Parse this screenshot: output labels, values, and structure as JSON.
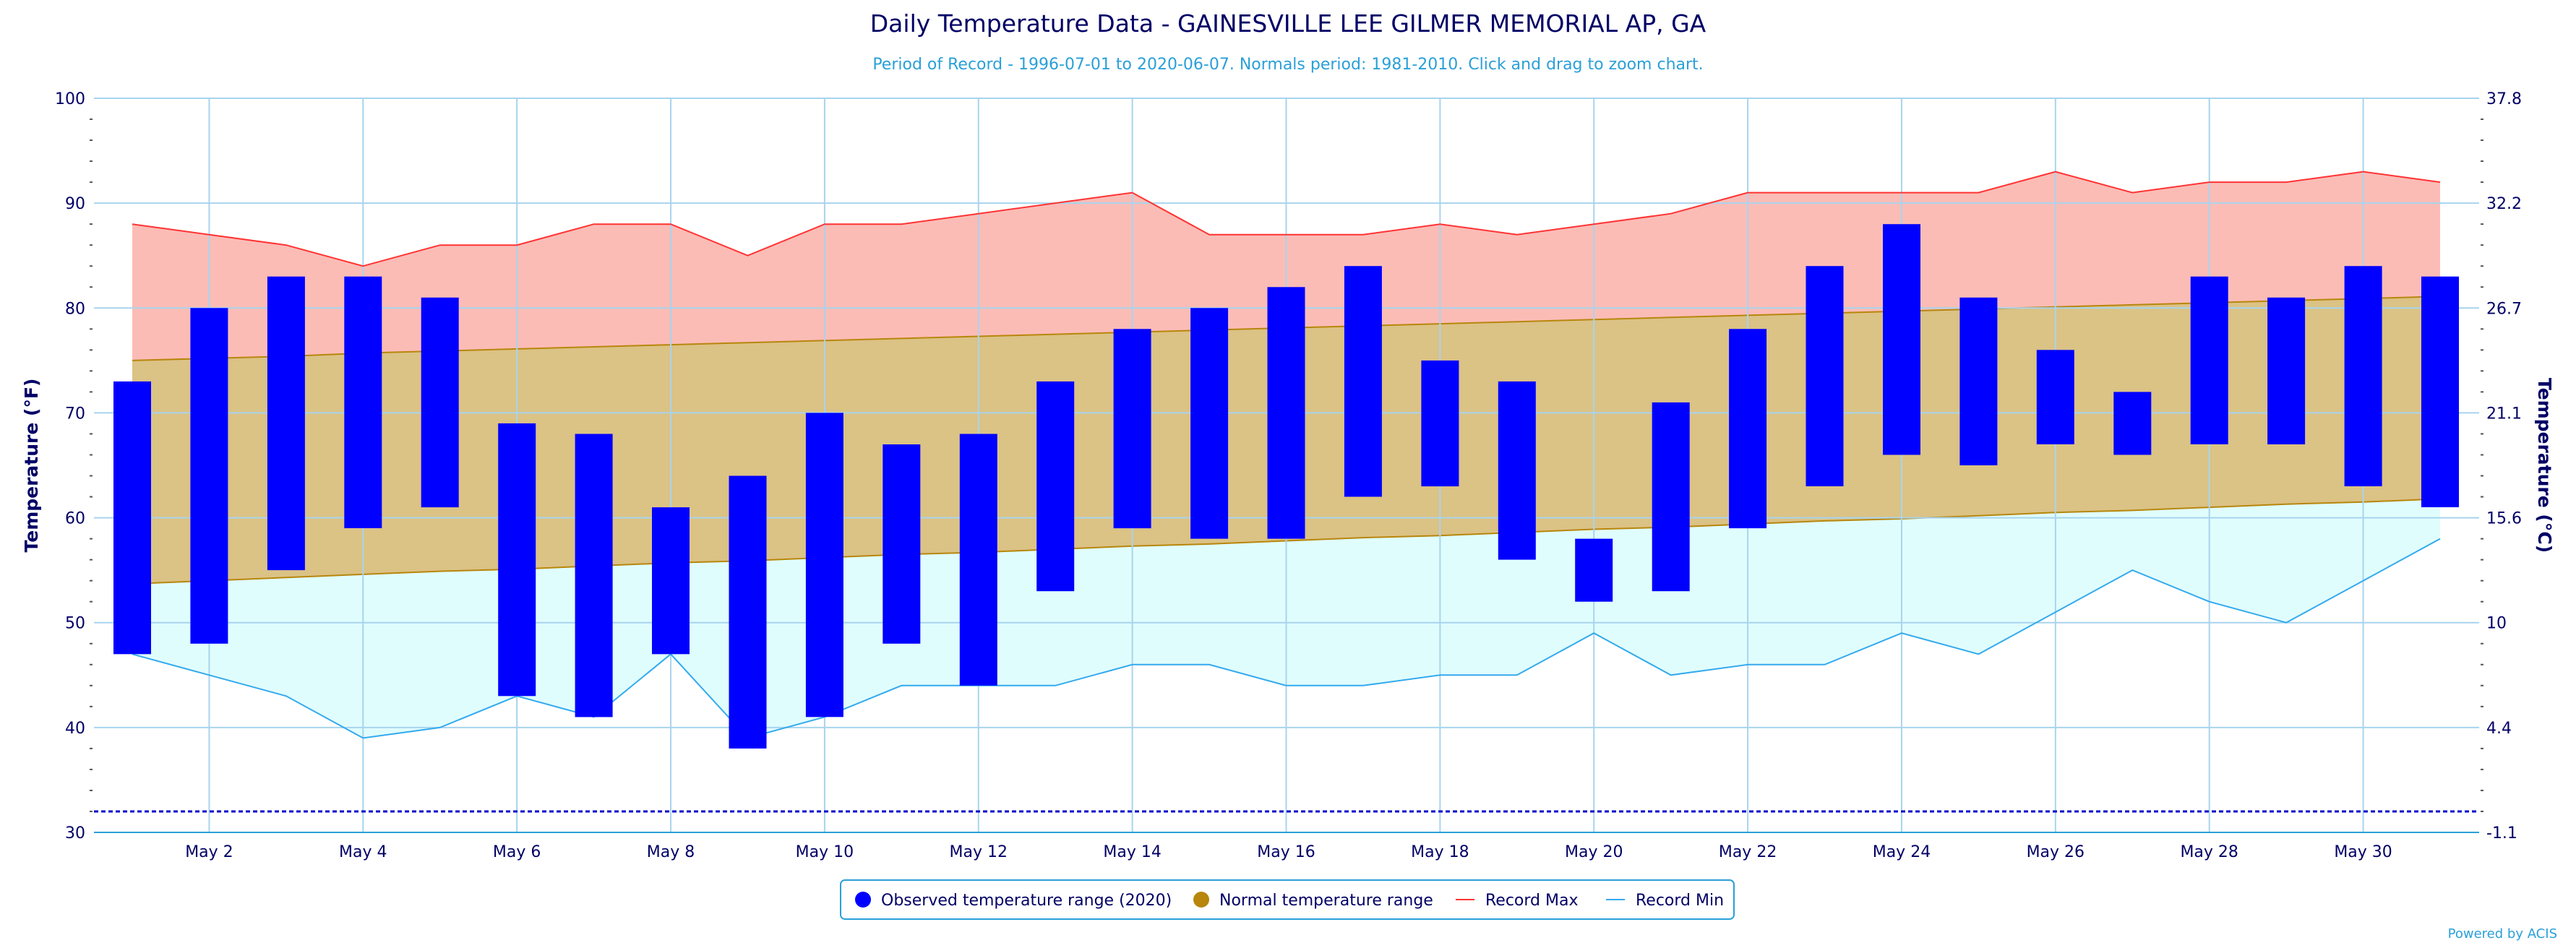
{
  "chart_data": {
    "type": "bar",
    "title": "Daily Temperature Data - GAINESVILLE LEE GILMER MEMORIAL AP, GA",
    "subtitle": "Period of Record - 1996-07-01 to 2020-06-07. Normals period: 1981-2010. Click and drag to zoom chart.",
    "ylabel": "Temperature (°F)",
    "ylabel_right": "Temperature (°C)",
    "ylim": [
      30,
      100
    ],
    "y_ticks": [
      30,
      40,
      50,
      60,
      70,
      80,
      90,
      100
    ],
    "y_ticks_right": [
      "-1.1",
      "4.4",
      "10",
      "15.6",
      "21.1",
      "26.7",
      "32.2",
      "37.8"
    ],
    "x_tick_labels": [
      "May 2",
      "May 4",
      "May 6",
      "May 8",
      "May 10",
      "May 12",
      "May 14",
      "May 16",
      "May 18",
      "May 20",
      "May 22",
      "May 24",
      "May 26",
      "May 28",
      "May 30"
    ],
    "x_tick_days": [
      2,
      4,
      6,
      8,
      10,
      12,
      14,
      16,
      18,
      20,
      22,
      24,
      26,
      28,
      30
    ],
    "days": [
      1,
      2,
      3,
      4,
      5,
      6,
      7,
      8,
      9,
      10,
      11,
      12,
      13,
      14,
      15,
      16,
      17,
      18,
      19,
      20,
      21,
      22,
      23,
      24,
      25,
      26,
      27,
      28,
      29,
      30,
      31
    ],
    "freeze_line": 32,
    "grid": true,
    "legend_position": "bottom-center",
    "series": [
      {
        "name": "Observed temperature range (2020)",
        "type": "range-bar",
        "color": "#0000ff",
        "low": [
          47,
          48,
          55,
          59,
          61,
          43,
          41,
          47,
          38,
          41,
          48,
          44,
          53,
          59,
          58,
          58,
          62,
          63,
          56,
          52,
          53,
          59,
          63,
          66,
          65,
          67,
          66,
          67,
          67,
          63,
          61
        ],
        "high": [
          73,
          80,
          83,
          83,
          81,
          69,
          68,
          61,
          64,
          70,
          67,
          68,
          73,
          78,
          80,
          82,
          84,
          75,
          73,
          58,
          71,
          78,
          84,
          88,
          81,
          76,
          72,
          83,
          81,
          84,
          83
        ]
      },
      {
        "name": "Normal temperature range",
        "type": "area-range",
        "color": "#b8860b",
        "low": [
          53.7,
          54.0,
          54.3,
          54.6,
          54.9,
          55.1,
          55.4,
          55.7,
          55.9,
          56.2,
          56.5,
          56.7,
          57.0,
          57.3,
          57.5,
          57.8,
          58.1,
          58.3,
          58.6,
          58.9,
          59.1,
          59.4,
          59.7,
          59.9,
          60.2,
          60.5,
          60.7,
          61.0,
          61.3,
          61.5,
          61.8
        ],
        "high": [
          75.0,
          75.2,
          75.4,
          75.7,
          75.9,
          76.1,
          76.3,
          76.5,
          76.7,
          76.9,
          77.1,
          77.3,
          77.5,
          77.7,
          77.9,
          78.1,
          78.3,
          78.5,
          78.7,
          78.9,
          79.1,
          79.3,
          79.5,
          79.7,
          79.9,
          80.1,
          80.3,
          80.5,
          80.7,
          80.9,
          81.1
        ]
      },
      {
        "name": "Record Max",
        "type": "line",
        "color": "#ff3333",
        "values": [
          88,
          87,
          86,
          84,
          86,
          86,
          88,
          88,
          85,
          88,
          88,
          89,
          90,
          91,
          87,
          87,
          87,
          88,
          87,
          88,
          89,
          91,
          91,
          91,
          91,
          93,
          91,
          92,
          92,
          93,
          92
        ]
      },
      {
        "name": "Record Min",
        "type": "line",
        "color": "#33aaee",
        "values": [
          47,
          45,
          43,
          39,
          40,
          43,
          41,
          47,
          39,
          41,
          44,
          44,
          44,
          46,
          46,
          44,
          44,
          45,
          45,
          49,
          45,
          46,
          46,
          49,
          47,
          51,
          55,
          52,
          50,
          54,
          58
        ]
      }
    ],
    "credits": "Powered by ACIS"
  },
  "colors": {
    "record_max_fill": "#fbbcb6",
    "normal_fill": "#dbc285",
    "record_min_fill": "#e0fdfd",
    "grid": "#a8d4ee",
    "text": "#000066",
    "accent": "#2aa0d8"
  }
}
